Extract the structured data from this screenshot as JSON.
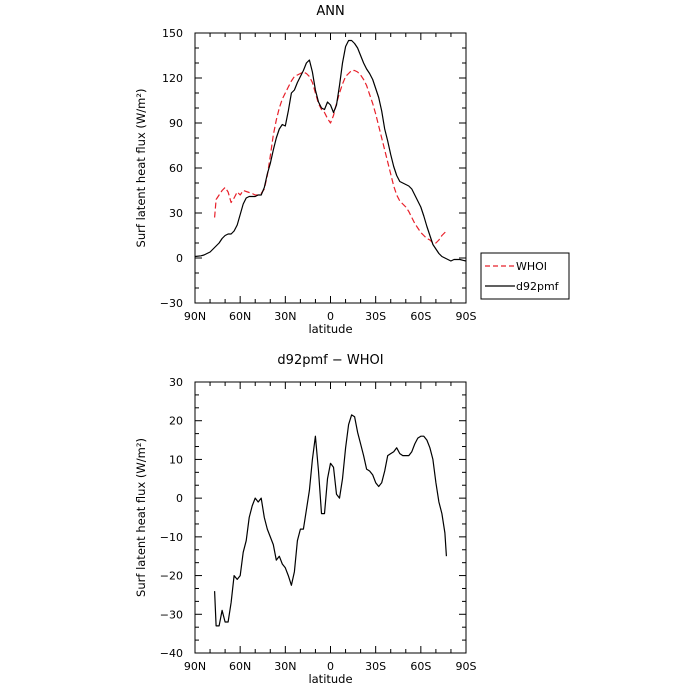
{
  "chart_data": [
    {
      "type": "line",
      "title": "ANN",
      "xlabel": "latitude",
      "ylabel": "Surf latent heat flux (W/m²)",
      "xlim": [
        -90,
        90
      ],
      "ylim": [
        -30,
        150
      ],
      "xticks": [
        -90,
        -60,
        -30,
        0,
        30,
        60,
        90
      ],
      "xticklabels": [
        "90N",
        "60N",
        "30N",
        "0",
        "30S",
        "60S",
        "90S"
      ],
      "yticks": [
        -30,
        0,
        30,
        60,
        90,
        120,
        150
      ],
      "yticklabels": [
        "−30",
        "0",
        "30",
        "60",
        "90",
        "120",
        "150"
      ],
      "grid": false,
      "legend": "right",
      "series": [
        {
          "name": "WHOI",
          "color": "#e8202a",
          "dash": true,
          "x": [
            -77,
            -76,
            -74,
            -72,
            -70,
            -68,
            -66,
            -64,
            -62,
            -60,
            -58,
            -55,
            -52,
            -50,
            -48,
            -46,
            -44,
            -42,
            -40,
            -38,
            -36,
            -34,
            -32,
            -30,
            -28,
            -26,
            -24,
            -22,
            -20,
            -18,
            -16,
            -14,
            -12,
            -10,
            -8,
            -6,
            -4,
            -2,
            0,
            2,
            4,
            6,
            8,
            10,
            12,
            14,
            16,
            18,
            20,
            22,
            24,
            26,
            28,
            30,
            32,
            34,
            36,
            38,
            40,
            42,
            44,
            46,
            48,
            50,
            52,
            54,
            56,
            58,
            60,
            62,
            64,
            66,
            68,
            70,
            72,
            74,
            76,
            77
          ],
          "values": [
            27,
            39,
            42,
            45,
            47,
            44,
            37,
            40,
            44,
            42,
            45,
            44,
            43,
            42,
            42,
            43,
            46,
            55,
            68,
            82,
            92,
            100,
            106,
            110,
            114,
            118,
            121,
            122,
            123,
            124,
            123,
            121,
            117,
            110,
            103,
            99,
            97,
            93,
            90,
            95,
            103,
            110,
            116,
            121,
            123,
            125,
            125,
            124,
            122,
            119,
            115,
            109,
            103,
            96,
            88,
            80,
            72,
            64,
            56,
            48,
            42,
            38,
            36,
            34,
            31,
            27,
            23,
            20,
            17,
            15,
            13,
            12,
            10,
            10,
            12,
            15,
            17,
            18
          ]
        },
        {
          "name": "d92pmf",
          "color": "#000000",
          "dash": false,
          "x": [
            -90,
            -86,
            -84,
            -82,
            -80,
            -78,
            -76,
            -74,
            -72,
            -70,
            -68,
            -66,
            -64,
            -62,
            -60,
            -58,
            -56,
            -54,
            -52,
            -50,
            -48,
            -46,
            -44,
            -42,
            -40,
            -38,
            -36,
            -34,
            -32,
            -30,
            -28,
            -26,
            -24,
            -22,
            -20,
            -18,
            -16,
            -14,
            -12,
            -10,
            -8,
            -6,
            -4,
            -2,
            0,
            2,
            4,
            6,
            8,
            10,
            12,
            14,
            16,
            18,
            20,
            22,
            24,
            26,
            28,
            30,
            32,
            34,
            36,
            38,
            40,
            42,
            44,
            46,
            48,
            50,
            52,
            54,
            56,
            58,
            60,
            62,
            64,
            66,
            68,
            70,
            72,
            74,
            76,
            78,
            80,
            82,
            84,
            86,
            88,
            90
          ],
          "values": [
            1,
            1.5,
            2,
            3,
            4,
            6,
            8,
            10,
            13,
            15,
            16,
            16,
            18,
            22,
            29,
            36,
            40,
            41,
            41,
            41,
            42,
            42,
            47,
            56,
            63,
            72,
            80,
            86,
            89,
            88,
            98,
            110,
            112,
            117,
            121,
            125,
            130,
            132,
            124,
            112,
            104,
            100,
            99,
            104,
            102,
            97,
            102,
            115,
            130,
            141,
            145,
            145,
            143,
            140,
            135,
            130,
            126,
            123,
            119,
            113,
            107,
            98,
            86,
            78,
            69,
            61,
            55,
            51,
            50,
            49,
            48,
            46,
            42,
            38,
            34,
            28,
            21,
            15,
            9,
            6,
            3,
            1,
            0,
            -1,
            -2,
            -1,
            -1,
            -1,
            -1.5,
            -2
          ]
        }
      ]
    },
    {
      "type": "line",
      "title": "d92pmf − WHOI",
      "xlabel": "latitude",
      "ylabel": "Surf latent heat flux (W/m²)",
      "xlim": [
        -90,
        90
      ],
      "ylim": [
        -40,
        30
      ],
      "xticks": [
        -90,
        -60,
        -30,
        0,
        30,
        60,
        90
      ],
      "xticklabels": [
        "90N",
        "60N",
        "30N",
        "0",
        "30S",
        "60S",
        "90S"
      ],
      "yticks": [
        -40,
        -30,
        -20,
        -10,
        0,
        10,
        20,
        30
      ],
      "yticklabels": [
        "−40",
        "−30",
        "−20",
        "−10",
        "0",
        "10",
        "20",
        "30"
      ],
      "grid": false,
      "series": [
        {
          "color": "#000000",
          "dash": false,
          "x": [
            -77,
            -76,
            -75,
            -74,
            -72,
            -70,
            -68,
            -66,
            -64,
            -62,
            -60,
            -58,
            -56,
            -54,
            -52,
            -50,
            -48,
            -46,
            -44,
            -42,
            -40,
            -38,
            -36,
            -34,
            -32,
            -30,
            -28,
            -26,
            -24,
            -22,
            -20,
            -18,
            -16,
            -14,
            -12,
            -10,
            -8,
            -6,
            -4,
            -2,
            0,
            2,
            4,
            6,
            8,
            10,
            12,
            14,
            16,
            18,
            20,
            22,
            24,
            26,
            28,
            30,
            32,
            34,
            36,
            38,
            40,
            42,
            44,
            46,
            48,
            50,
            52,
            54,
            56,
            58,
            60,
            62,
            64,
            66,
            68,
            70,
            72,
            74,
            76,
            77
          ],
          "values": [
            -24,
            -33,
            -33,
            -33,
            -29,
            -32,
            -32,
            -27,
            -20,
            -21,
            -20,
            -14,
            -11,
            -5,
            -2,
            0,
            -1,
            0,
            -5,
            -8,
            -10,
            -12,
            -16,
            -15,
            -17,
            -18,
            -20,
            -22.5,
            -19,
            -11,
            -8,
            -8,
            -3,
            2,
            10,
            16,
            7,
            -4,
            -4,
            5,
            9,
            8,
            1,
            0,
            5,
            13,
            19,
            21.5,
            21,
            17,
            14,
            11,
            7.5,
            7,
            6,
            4,
            3,
            4,
            7,
            11,
            11.5,
            12,
            13,
            11.5,
            11,
            11,
            11,
            12,
            14,
            15.5,
            16,
            16,
            15,
            13,
            10,
            4,
            -1,
            -4,
            -9,
            -15
          ]
        }
      ]
    }
  ]
}
